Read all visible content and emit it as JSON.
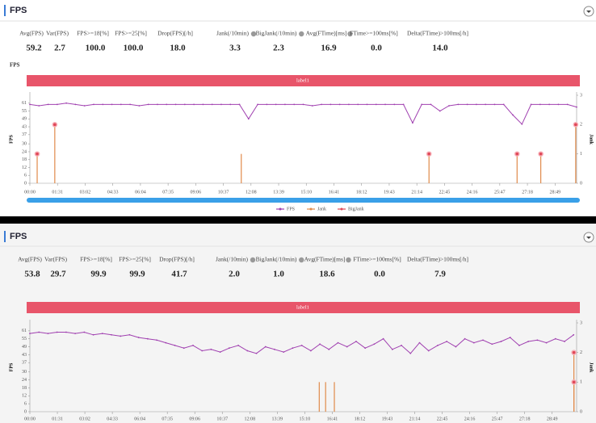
{
  "panels": [
    {
      "title": "FPS",
      "section_label": "FPS",
      "band": "label1",
      "stats": [
        {
          "label": "Avg(FPS)",
          "value": "59.2"
        },
        {
          "label": "Var(FPS)",
          "value": "2.7"
        },
        {
          "label": "FPS>=18[%]",
          "value": "100.0"
        },
        {
          "label": "FPS>=25[%]",
          "value": "100.0"
        },
        {
          "label": "Drop(FPS)[/h]",
          "value": "18.0"
        },
        {
          "label": "Jank(/10min)",
          "value": "3.3"
        },
        {
          "label": "BigJank(/10min)",
          "value": "2.3"
        },
        {
          "label": "Avg(FTime)[ms]",
          "value": "16.9"
        },
        {
          "label": "FTime>=100ms[%]",
          "value": "0.0"
        },
        {
          "label": "Delta(FTime)>100ms[/h]",
          "value": "14.0"
        }
      ]
    },
    {
      "title": "FPS",
      "band": "label1",
      "stats": [
        {
          "label": "Avg(FPS)",
          "value": "53.8"
        },
        {
          "label": "Var(FPS)",
          "value": "29.7"
        },
        {
          "label": "FPS>=18[%]",
          "value": "99.9"
        },
        {
          "label": "FPS>=25[%]",
          "value": "99.9"
        },
        {
          "label": "Drop(FPS)[/h]",
          "value": "41.7"
        },
        {
          "label": "Jank(/10min)",
          "value": "2.0"
        },
        {
          "label": "BigJank(/10min)",
          "value": "1.0"
        },
        {
          "label": "Avg(FTime)[ms]",
          "value": "18.6"
        },
        {
          "label": "FTime>=100ms[%]",
          "value": "0.0"
        },
        {
          "label": "Delta(FTime)>100ms[/h]",
          "value": "7.9"
        }
      ]
    }
  ],
  "chart_data": [
    {
      "type": "line",
      "y_label": "FPS",
      "y2_label": "Jank",
      "legend": "bottom",
      "xlim": [
        0,
        1800
      ],
      "ylim": [
        0,
        67
      ],
      "y2lim": [
        0,
        3
      ],
      "xticks": [
        {
          "value": 0,
          "label": "00:00"
        },
        {
          "value": 91,
          "label": "01:31"
        },
        {
          "value": 182,
          "label": "03:02"
        },
        {
          "value": 273,
          "label": "04:33"
        },
        {
          "value": 364,
          "label": "06:04"
        },
        {
          "value": 455,
          "label": "07:35"
        },
        {
          "value": 546,
          "label": "09:06"
        },
        {
          "value": 637,
          "label": "10:37"
        },
        {
          "value": 728,
          "label": "12:08"
        },
        {
          "value": 819,
          "label": "13:39"
        },
        {
          "value": 910,
          "label": "15:10"
        },
        {
          "value": 1001,
          "label": "16:41"
        },
        {
          "value": 1092,
          "label": "18:12"
        },
        {
          "value": 1183,
          "label": "19:43"
        },
        {
          "value": 1274,
          "label": "21:14"
        },
        {
          "value": 1365,
          "label": "22:45"
        },
        {
          "value": 1456,
          "label": "24:16"
        },
        {
          "value": 1547,
          "label": "25:47"
        },
        {
          "value": 1638,
          "label": "27:18"
        },
        {
          "value": 1729,
          "label": "28:49"
        }
      ],
      "yticks": [
        0,
        6,
        12,
        18,
        24,
        30,
        37,
        43,
        49,
        55,
        61
      ],
      "y2ticks": [
        0,
        1,
        2,
        3
      ],
      "series": [
        {
          "name": "FPS",
          "color": "#a040b0",
          "x": [
            0,
            30,
            60,
            90,
            120,
            150,
            180,
            210,
            240,
            270,
            300,
            330,
            360,
            390,
            420,
            450,
            480,
            510,
            540,
            570,
            600,
            630,
            660,
            690,
            720,
            750,
            780,
            810,
            840,
            870,
            900,
            930,
            960,
            990,
            1020,
            1050,
            1080,
            1110,
            1140,
            1170,
            1200,
            1230,
            1260,
            1290,
            1320,
            1350,
            1380,
            1410,
            1440,
            1470,
            1500,
            1530,
            1560,
            1590,
            1620,
            1650,
            1680,
            1710,
            1740,
            1770,
            1800
          ],
          "values": [
            60,
            59,
            60,
            60,
            61,
            60,
            59,
            60,
            60,
            60,
            60,
            60,
            59,
            60,
            60,
            60,
            60,
            60,
            60,
            60,
            60,
            60,
            60,
            60,
            49,
            60,
            60,
            60,
            60,
            60,
            60,
            59,
            60,
            60,
            60,
            60,
            60,
            60,
            60,
            60,
            60,
            60,
            46,
            60,
            60,
            55,
            59,
            60,
            60,
            60,
            60,
            60,
            60,
            52,
            45,
            60,
            60,
            60,
            60,
            60,
            58
          ]
        },
        {
          "name": "Jank",
          "color": "#e08a4a",
          "axis": "y2",
          "x": [
            24,
            82,
            696,
            1314,
            1604,
            1682,
            1797
          ],
          "values": [
            1,
            2,
            1,
            1,
            1,
            1,
            2
          ]
        },
        {
          "name": "BigJank",
          "color": "#e04858",
          "axis": "y2",
          "x": [
            24,
            82,
            1314,
            1604,
            1682,
            1797
          ],
          "values": [
            1,
            2,
            1,
            1,
            1,
            2
          ]
        }
      ]
    },
    {
      "type": "line",
      "y_label": "FPS",
      "y2_label": "Jank",
      "xlim": [
        0,
        1810
      ],
      "ylim": [
        0,
        67
      ],
      "y2lim": [
        0,
        3
      ],
      "xticks": [
        {
          "value": 0,
          "label": "00:00"
        },
        {
          "value": 91,
          "label": "01:31"
        },
        {
          "value": 182,
          "label": "03:02"
        },
        {
          "value": 273,
          "label": "04:33"
        },
        {
          "value": 364,
          "label": "06:04"
        },
        {
          "value": 455,
          "label": "07:35"
        },
        {
          "value": 546,
          "label": "09:06"
        },
        {
          "value": 637,
          "label": "10:37"
        },
        {
          "value": 728,
          "label": "12:08"
        },
        {
          "value": 819,
          "label": "13:39"
        },
        {
          "value": 910,
          "label": "15:10"
        },
        {
          "value": 1001,
          "label": "16:41"
        },
        {
          "value": 1092,
          "label": "18:12"
        },
        {
          "value": 1183,
          "label": "19:43"
        },
        {
          "value": 1274,
          "label": "21:14"
        },
        {
          "value": 1365,
          "label": "22:45"
        },
        {
          "value": 1456,
          "label": "24:16"
        },
        {
          "value": 1547,
          "label": "25:47"
        },
        {
          "value": 1638,
          "label": "27:18"
        },
        {
          "value": 1729,
          "label": "28:49"
        }
      ],
      "yticks": [
        0,
        6,
        12,
        18,
        24,
        30,
        37,
        43,
        49,
        55,
        61
      ],
      "y2ticks": [
        0,
        1,
        2,
        3
      ],
      "series": [
        {
          "color": "#a040b0",
          "x": [
            0,
            30,
            60,
            90,
            120,
            150,
            180,
            210,
            240,
            270,
            300,
            330,
            360,
            390,
            420,
            450,
            480,
            510,
            540,
            570,
            600,
            630,
            660,
            690,
            720,
            750,
            780,
            810,
            840,
            870,
            900,
            930,
            960,
            990,
            1020,
            1050,
            1080,
            1110,
            1140,
            1170,
            1200,
            1230,
            1260,
            1290,
            1320,
            1350,
            1380,
            1410,
            1440,
            1470,
            1500,
            1530,
            1560,
            1590,
            1620,
            1650,
            1680,
            1710,
            1740,
            1770,
            1800
          ],
          "values": [
            59,
            60,
            59,
            60,
            60,
            59,
            60,
            58,
            59,
            58,
            57,
            58,
            56,
            55,
            54,
            52,
            50,
            48,
            50,
            46,
            47,
            45,
            48,
            50,
            46,
            44,
            49,
            47,
            45,
            48,
            50,
            46,
            51,
            47,
            52,
            49,
            53,
            48,
            51,
            55,
            47,
            50,
            44,
            52,
            46,
            50,
            53,
            49,
            55,
            52,
            54,
            51,
            53,
            56,
            50,
            53,
            54,
            52,
            55,
            53,
            58
          ]
        },
        {
          "color": "#e08a4a",
          "axis": "y2",
          "x": [
            958,
            979,
            1008,
            1801,
            1801
          ],
          "values": [
            1,
            1,
            1,
            2,
            1
          ]
        },
        {
          "color": "#e04858",
          "axis": "y2",
          "x": [
            1801,
            1801
          ],
          "values": [
            2,
            1
          ]
        }
      ]
    }
  ]
}
